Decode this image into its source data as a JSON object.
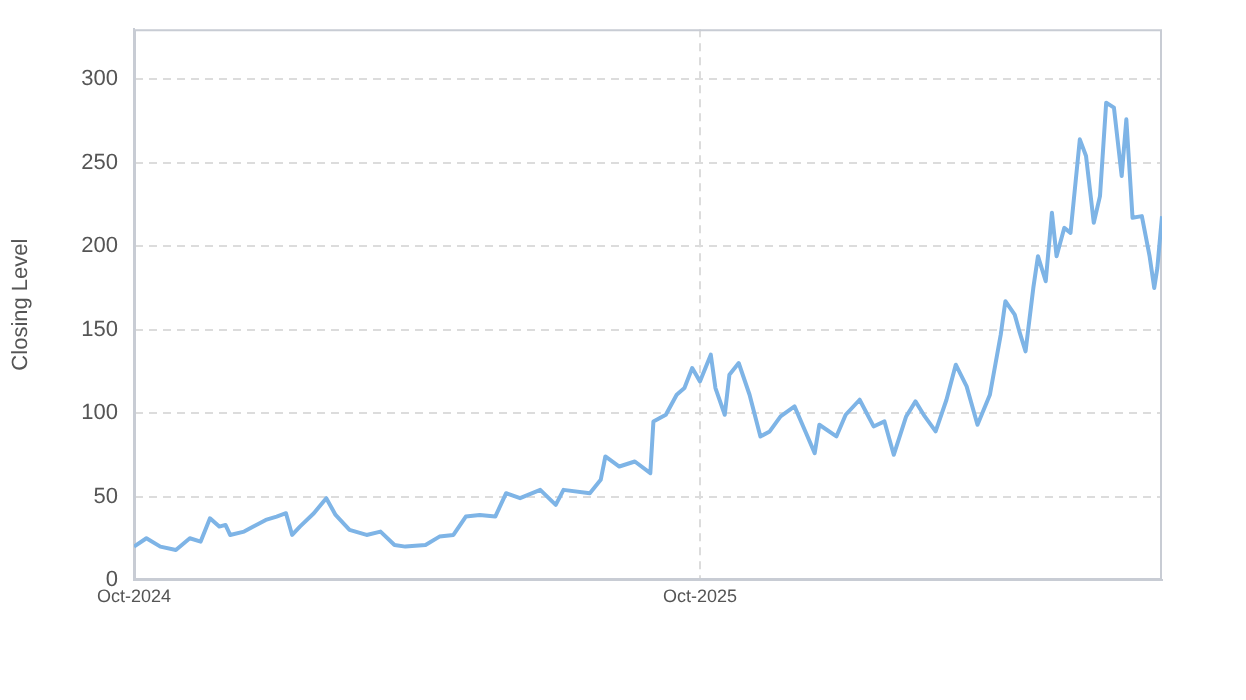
{
  "chart_data": {
    "type": "line",
    "ylabel": "Closing Level",
    "color": "#7eb4e6",
    "x": [
      "2024-10-01",
      "2024-10-09",
      "2024-10-18",
      "2024-10-28",
      "2024-11-06",
      "2024-11-13",
      "2024-11-19",
      "2024-11-25",
      "2024-11-29",
      "2024-12-02",
      "2024-12-11",
      "2024-12-17",
      "2024-12-25",
      "2025-01-01",
      "2025-01-07",
      "2025-01-11",
      "2025-01-16",
      "2025-01-25",
      "2025-02-02",
      "2025-02-08",
      "2025-02-17",
      "2025-02-28",
      "2025-03-09",
      "2025-03-18",
      "2025-03-25",
      "2025-04-07",
      "2025-04-16",
      "2025-04-25",
      "2025-05-03",
      "2025-05-12",
      "2025-05-22",
      "2025-05-29",
      "2025-06-07",
      "2025-06-20",
      "2025-06-30",
      "2025-07-05",
      "2025-07-22",
      "2025-07-29",
      "2025-08-01",
      "2025-08-10",
      "2025-08-20",
      "2025-08-30",
      "2025-09-01",
      "2025-09-09",
      "2025-09-16",
      "2025-09-21",
      "2025-09-26",
      "2025-10-01",
      "2025-10-08",
      "2025-10-11",
      "2025-10-17",
      "2025-10-20",
      "2025-10-26",
      "2025-11-02",
      "2025-11-09",
      "2025-11-15",
      "2025-11-22",
      "2025-12-01",
      "2025-12-08",
      "2025-12-14",
      "2025-12-17",
      "2025-12-28",
      "2026-01-03",
      "2026-01-12",
      "2026-01-21",
      "2026-01-28",
      "2026-02-03",
      "2026-02-11",
      "2026-02-17",
      "2026-02-23",
      "2026-03-02",
      "2026-03-09",
      "2026-03-15",
      "2026-03-22",
      "2026-03-29",
      "2026-04-06",
      "2026-04-13",
      "2026-04-16",
      "2026-04-22",
      "2026-04-25",
      "2026-04-29",
      "2026-05-04",
      "2026-05-07",
      "2026-05-12",
      "2026-05-16",
      "2026-05-19",
      "2026-05-24",
      "2026-05-28",
      "2026-06-03",
      "2026-06-07",
      "2026-06-12",
      "2026-06-16",
      "2026-06-20",
      "2026-06-25",
      "2026-06-30",
      "2026-07-03",
      "2026-07-07",
      "2026-07-13",
      "2026-07-18",
      "2026-07-21",
      "2026-07-23",
      "2026-07-26"
    ],
    "values": [
      20,
      25,
      20,
      18,
      25,
      23,
      37,
      32,
      33,
      27,
      29,
      32,
      36,
      38,
      40,
      27,
      32,
      40,
      49,
      39,
      30,
      27,
      29,
      21,
      20,
      21,
      26,
      27,
      38,
      39,
      38,
      52,
      49,
      54,
      45,
      54,
      52,
      60,
      74,
      68,
      71,
      64,
      95,
      99,
      111,
      115,
      127,
      119,
      135,
      115,
      99,
      123,
      130,
      111,
      86,
      89,
      98,
      104,
      89,
      76,
      93,
      86,
      99,
      108,
      92,
      95,
      75,
      98,
      107,
      98,
      89,
      108,
      129,
      116,
      93,
      111,
      147,
      167,
      159,
      149,
      137,
      175,
      194,
      179,
      220,
      194,
      211,
      208,
      264,
      254,
      214,
      230,
      286,
      283,
      242,
      276,
      217,
      218,
      194,
      175,
      187,
      218
    ],
    "xlim": [
      "2024-10-01",
      "2026-07-26"
    ],
    "xticks": [
      {
        "value": "2024-10-01",
        "label": "Oct-2024"
      },
      {
        "value": "2025-10-01",
        "label": "Oct-2025"
      }
    ],
    "ylim": [
      0,
      330
    ],
    "yticks": [
      0,
      50,
      100,
      150,
      200,
      250,
      300
    ],
    "grid": true,
    "legend": false,
    "marker": "none",
    "line_style": "solid"
  }
}
